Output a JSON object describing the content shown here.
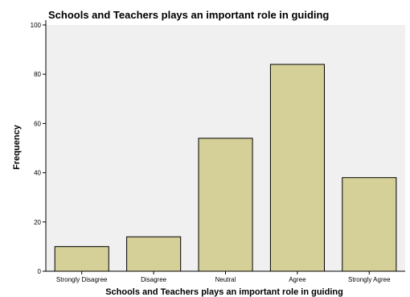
{
  "chart_data": {
    "type": "bar",
    "title": "Schools and Teachers plays an important role in guiding",
    "xlabel": "Schools and Teachers plays an important role in guiding",
    "ylabel": "Frequency",
    "categories": [
      "Strongly Disagree",
      "Disagree",
      "Neutral",
      "Agree",
      "Strongly Agree"
    ],
    "values": [
      10,
      14,
      54,
      84,
      38
    ],
    "ylim": [
      0,
      100
    ],
    "yticks": [
      0,
      20,
      40,
      60,
      80,
      100
    ],
    "grid": false,
    "colors": {
      "bar_fill": "#d4d098",
      "bar_stroke": "#000000",
      "plot_background": "#f0f0f0",
      "axis": "#000000"
    }
  }
}
